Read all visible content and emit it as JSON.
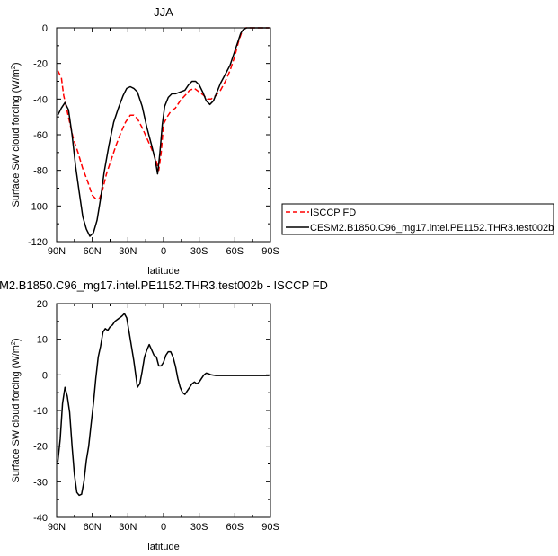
{
  "chart_data": [
    {
      "type": "line",
      "title": "JJA",
      "xlabel": "latitude",
      "ylabel": "Surface SW cloud forcing (W/m²)",
      "ylabel_base": "Surface SW cloud forcing (W/m",
      "ylabel_sup": "2",
      "ylabel_close": ")",
      "xlim": [
        90,
        -90
      ],
      "ylim": [
        -120,
        0
      ],
      "x_ticks": [
        90,
        60,
        30,
        0,
        -30,
        -60,
        -90
      ],
      "x_tick_labels": [
        "90N",
        "60N",
        "30N",
        "0",
        "30S",
        "60S",
        "90S"
      ],
      "y_ticks": [
        -120,
        -100,
        -80,
        -60,
        -40,
        -20,
        0
      ],
      "y_tick_labels": [
        "-120",
        "-100",
        "-80",
        "-60",
        "-40",
        "-20",
        "0"
      ],
      "legend_placement": "right, outside plot",
      "series": [
        {
          "name": "ISCCP FD",
          "color": "#ff0000",
          "dash": "dashed",
          "points": [
            [
              89,
              -24
            ],
            [
              86,
              -28
            ],
            [
              84,
              -38
            ],
            [
              80,
              -50
            ],
            [
              76,
              -62
            ],
            [
              72,
              -70
            ],
            [
              68,
              -79
            ],
            [
              64,
              -86
            ],
            [
              60,
              -94
            ],
            [
              57,
              -96
            ],
            [
              54,
              -96
            ],
            [
              51,
              -90
            ],
            [
              48,
              -82
            ],
            [
              44,
              -74
            ],
            [
              40,
              -66
            ],
            [
              36,
              -59
            ],
            [
              32,
              -53
            ],
            [
              28,
              -49
            ],
            [
              25,
              -49
            ],
            [
              22,
              -51
            ],
            [
              18,
              -56
            ],
            [
              14,
              -62
            ],
            [
              10,
              -68
            ],
            [
              6,
              -75
            ],
            [
              4,
              -80
            ],
            [
              2,
              -70
            ],
            [
              0,
              -54
            ],
            [
              -3,
              -50
            ],
            [
              -6,
              -47
            ],
            [
              -10,
              -45
            ],
            [
              -14,
              -41
            ],
            [
              -18,
              -38
            ],
            [
              -22,
              -35
            ],
            [
              -26,
              -34
            ],
            [
              -30,
              -36
            ],
            [
              -34,
              -38
            ],
            [
              -37,
              -40
            ],
            [
              -40,
              -40
            ],
            [
              -44,
              -38
            ],
            [
              -48,
              -35
            ],
            [
              -52,
              -30
            ],
            [
              -56,
              -24
            ],
            [
              -60,
              -16
            ],
            [
              -63,
              -8
            ],
            [
              -66,
              -2
            ],
            [
              -69,
              0
            ],
            [
              -72,
              0
            ],
            [
              -80,
              0
            ],
            [
              -89,
              0
            ]
          ]
        },
        {
          "name": "CESM2.B1850.C96_mg17.intel.PE1152.THR3.test002b",
          "color": "#000000",
          "dash": "solid",
          "points": [
            [
              89,
              -49
            ],
            [
              86,
              -45
            ],
            [
              83,
              -42
            ],
            [
              80,
              -46
            ],
            [
              77,
              -60
            ],
            [
              74,
              -78
            ],
            [
              71,
              -92
            ],
            [
              68,
              -106
            ],
            [
              65,
              -113
            ],
            [
              62,
              -117
            ],
            [
              59,
              -115
            ],
            [
              56,
              -108
            ],
            [
              53,
              -96
            ],
            [
              50,
              -81
            ],
            [
              46,
              -66
            ],
            [
              42,
              -53
            ],
            [
              38,
              -45
            ],
            [
              34,
              -38
            ],
            [
              31,
              -34
            ],
            [
              28,
              -33
            ],
            [
              25,
              -34
            ],
            [
              22,
              -36
            ],
            [
              18,
              -44
            ],
            [
              14,
              -56
            ],
            [
              10,
              -66
            ],
            [
              7,
              -74
            ],
            [
              5,
              -82
            ],
            [
              3,
              -70
            ],
            [
              1,
              -54
            ],
            [
              -1,
              -44
            ],
            [
              -4,
              -39
            ],
            [
              -7,
              -37
            ],
            [
              -10,
              -37
            ],
            [
              -14,
              -36
            ],
            [
              -18,
              -35
            ],
            [
              -21,
              -32
            ],
            [
              -24,
              -30
            ],
            [
              -27,
              -30
            ],
            [
              -30,
              -32
            ],
            [
              -33,
              -36
            ],
            [
              -36,
              -41
            ],
            [
              -39,
              -43
            ],
            [
              -42,
              -41
            ],
            [
              -45,
              -36
            ],
            [
              -48,
              -31
            ],
            [
              -52,
              -26
            ],
            [
              -56,
              -21
            ],
            [
              -60,
              -13
            ],
            [
              -63,
              -7
            ],
            [
              -65,
              -3
            ],
            [
              -67,
              -1
            ],
            [
              -70,
              0
            ],
            [
              -80,
              0
            ],
            [
              -89,
              0
            ]
          ]
        }
      ]
    },
    {
      "type": "line",
      "title": "M2.B1850.C96_mg17.intel.PE1152.THR3.test002b - ISCCP FD",
      "xlabel": "latitude",
      "ylabel": "Surface SW cloud forcing (W/m²)",
      "ylabel_base": "Surface SW cloud forcing (W/m",
      "ylabel_sup": "2",
      "ylabel_close": ")",
      "xlim": [
        90,
        -90
      ],
      "ylim": [
        -40,
        20
      ],
      "x_ticks": [
        90,
        60,
        30,
        0,
        -30,
        -60,
        -90
      ],
      "x_tick_labels": [
        "90N",
        "60N",
        "30N",
        "0",
        "30S",
        "60S",
        "90S"
      ],
      "y_ticks": [
        -40,
        -30,
        -20,
        -10,
        0,
        10,
        20
      ],
      "y_tick_labels": [
        "-40",
        "-30",
        "-20",
        "-10",
        "0",
        "10",
        "20"
      ],
      "series": [
        {
          "color": "#000000",
          "dash": "solid",
          "points": [
            [
              89,
              -24.5
            ],
            [
              87,
              -18
            ],
            [
              85,
              -8
            ],
            [
              83,
              -3.5
            ],
            [
              81,
              -6
            ],
            [
              79,
              -10.5
            ],
            [
              77,
              -20
            ],
            [
              75,
              -28
            ],
            [
              73,
              -33
            ],
            [
              71,
              -33.8
            ],
            [
              69,
              -33.5
            ],
            [
              67,
              -30
            ],
            [
              65,
              -24
            ],
            [
              63,
              -20
            ],
            [
              61,
              -14
            ],
            [
              59,
              -8
            ],
            [
              57,
              -1
            ],
            [
              55,
              5
            ],
            [
              53,
              8
            ],
            [
              51,
              12
            ],
            [
              49,
              13
            ],
            [
              47,
              12.5
            ],
            [
              45,
              13.5
            ],
            [
              43,
              14
            ],
            [
              41,
              15
            ],
            [
              39,
              15.5
            ],
            [
              37,
              16
            ],
            [
              35,
              16.5
            ],
            [
              33,
              17.2
            ],
            [
              31,
              16
            ],
            [
              29,
              12
            ],
            [
              27,
              8
            ],
            [
              25,
              4
            ],
            [
              23,
              -1
            ],
            [
              22,
              -3.5
            ],
            [
              20,
              -2.5
            ],
            [
              18,
              1
            ],
            [
              16,
              5
            ],
            [
              14,
              7
            ],
            [
              12,
              8.5
            ],
            [
              10,
              7
            ],
            [
              8,
              5.5
            ],
            [
              6,
              5
            ],
            [
              4,
              2.5
            ],
            [
              2,
              2.5
            ],
            [
              0,
              3.5
            ],
            [
              -2,
              5.5
            ],
            [
              -4,
              6.5
            ],
            [
              -6,
              6.5
            ],
            [
              -8,
              5
            ],
            [
              -10,
              2.5
            ],
            [
              -12,
              -1
            ],
            [
              -14,
              -3.5
            ],
            [
              -16,
              -5
            ],
            [
              -18,
              -5.5
            ],
            [
              -20,
              -4.5
            ],
            [
              -22,
              -3.5
            ],
            [
              -24,
              -2.5
            ],
            [
              -26,
              -2
            ],
            [
              -28,
              -2.5
            ],
            [
              -30,
              -2
            ],
            [
              -32,
              -1
            ],
            [
              -34,
              0
            ],
            [
              -36,
              0.5
            ],
            [
              -38,
              0.3
            ],
            [
              -40,
              0
            ],
            [
              -44,
              -0.2
            ],
            [
              -50,
              -0.2
            ],
            [
              -60,
              -0.2
            ],
            [
              -89,
              -0.2
            ]
          ]
        }
      ]
    }
  ]
}
